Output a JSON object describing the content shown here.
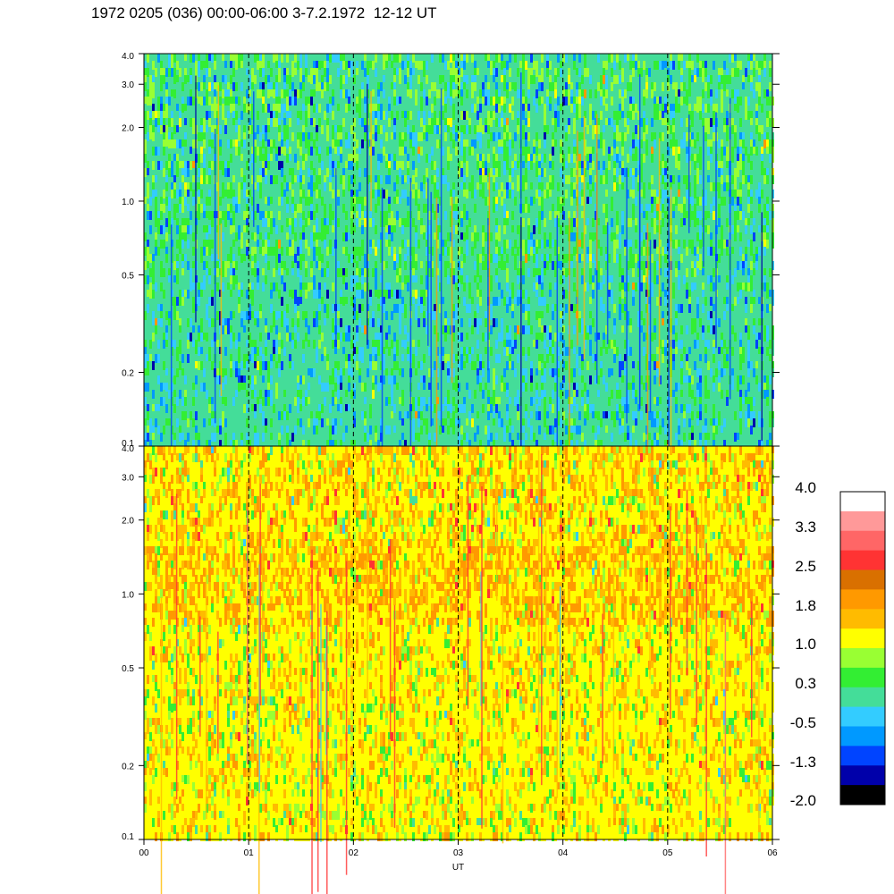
{
  "title": "1972 0205 (036) 00:00-06:00 3-7.2.1972  12-12 UT",
  "chart_data": [
    {
      "type": "heatmap",
      "panel": "top",
      "x_ticks": [
        "00",
        "01",
        "02",
        "03",
        "04",
        "05",
        "06"
      ],
      "x_range": [
        0,
        6
      ],
      "y_scale": "log",
      "y_range": [
        0.1,
        4.0
      ],
      "y_ticks": [
        {
          "value": 0.1,
          "label": "0.1"
        },
        {
          "value": 0.2,
          "label": "0.2"
        },
        {
          "value": 0.5,
          "label": "0.5"
        },
        {
          "value": 1.0,
          "label": "1.0"
        },
        {
          "value": 2.0,
          "label": "2.0"
        },
        {
          "value": 3.0,
          "label": "3.0"
        },
        {
          "value": 4.0,
          "label": "4.0"
        }
      ],
      "hour_gridlines": [
        1,
        2,
        3,
        4,
        5
      ],
      "gridline_style": "dashed",
      "dominant_levels": "green / cyan / blue (about -1.3 to 1.0)"
    },
    {
      "type": "heatmap",
      "panel": "bottom",
      "x_ticks": [
        "00",
        "01",
        "02",
        "03",
        "04",
        "05",
        "06"
      ],
      "xlabel": "UT",
      "x_range": [
        0,
        6
      ],
      "y_scale": "log",
      "y_range": [
        0.1,
        4.0
      ],
      "y_ticks": [
        {
          "value": 0.1,
          "label": "0.1"
        },
        {
          "value": 0.2,
          "label": "0.2"
        },
        {
          "value": 0.5,
          "label": "0.5"
        },
        {
          "value": 1.0,
          "label": "1.0"
        },
        {
          "value": 2.0,
          "label": "2.0"
        },
        {
          "value": 3.0,
          "label": "3.0"
        },
        {
          "value": 4.0,
          "label": "4.0"
        }
      ],
      "hour_gridlines": [
        1,
        2,
        3,
        4,
        5
      ],
      "gridline_style": "dashed",
      "dominant_levels": "yellow / orange (about 0.3 to 2.5)"
    }
  ],
  "colorbar": {
    "labels": [
      "4.0",
      "3.3",
      "2.5",
      "1.8",
      "1.0",
      "0.3",
      "-0.5",
      "-1.3",
      "-2.0"
    ],
    "colors": [
      "#ffffff",
      "#ff9999",
      "#ff6666",
      "#ff3333",
      "#d97000",
      "#ff9900",
      "#ffbb00",
      "#ffff00",
      "#99ff33",
      "#33ee33",
      "#44dd99",
      "#33ccff",
      "#0099ff",
      "#0044ff",
      "#0000aa",
      "#000000"
    ]
  },
  "palette": {
    "top": [
      "#44dd99",
      "#33ee33",
      "#99ff33",
      "#33ccff",
      "#0099ff",
      "#0044ff",
      "#0000aa",
      "#ffff00",
      "#ff9900"
    ],
    "bottom": [
      "#ffff00",
      "#ffbb00",
      "#ff9900",
      "#99ff33",
      "#33ee33",
      "#44dd99",
      "#33ccff",
      "#ff3333"
    ]
  }
}
